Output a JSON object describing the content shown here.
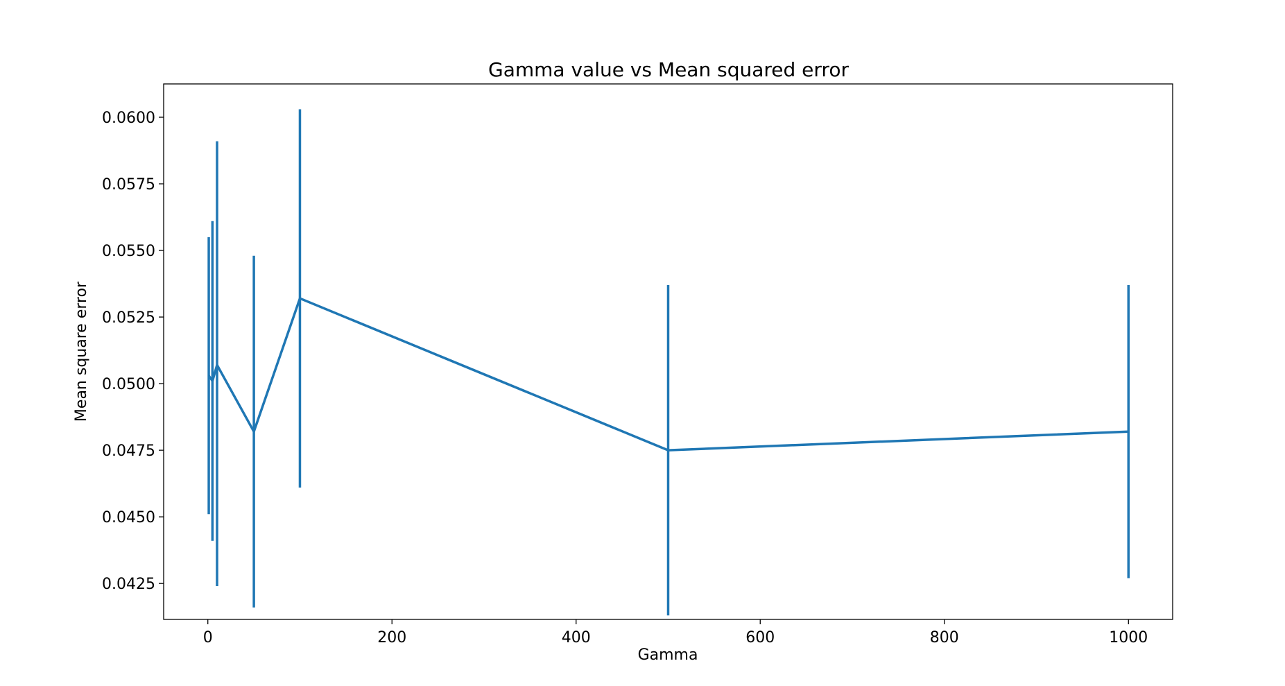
{
  "chart_data": {
    "type": "line",
    "title": "Gamma value vs Mean squared error",
    "xlabel": "Gamma",
    "ylabel": "Mean square error",
    "xlim": [
      -48,
      1048
    ],
    "ylim": [
      0.04115,
      0.06125
    ],
    "xticks": [
      0,
      200,
      400,
      600,
      800,
      1000
    ],
    "xtick_labels": [
      "0",
      "200",
      "400",
      "600",
      "800",
      "1000"
    ],
    "yticks": [
      0.0425,
      0.045,
      0.0475,
      0.05,
      0.0525,
      0.055,
      0.0575,
      0.06
    ],
    "ytick_labels": [
      "0.0425",
      "0.0450",
      "0.0475",
      "0.0500",
      "0.0525",
      "0.0550",
      "0.0575",
      "0.0600"
    ],
    "grid": false,
    "color": "#1f77b4",
    "series": [
      {
        "x": [
          1,
          5,
          10,
          50,
          100,
          500,
          1000
        ],
        "y": [
          0.0503,
          0.0501,
          0.0507,
          0.0482,
          0.0532,
          0.0475,
          0.0482
        ],
        "yerr_low": [
          0.0451,
          0.0441,
          0.0424,
          0.0416,
          0.0461,
          0.0413,
          0.0427
        ],
        "yerr_high": [
          0.0555,
          0.0561,
          0.0591,
          0.0548,
          0.0603,
          0.0537,
          0.0537
        ]
      }
    ]
  }
}
